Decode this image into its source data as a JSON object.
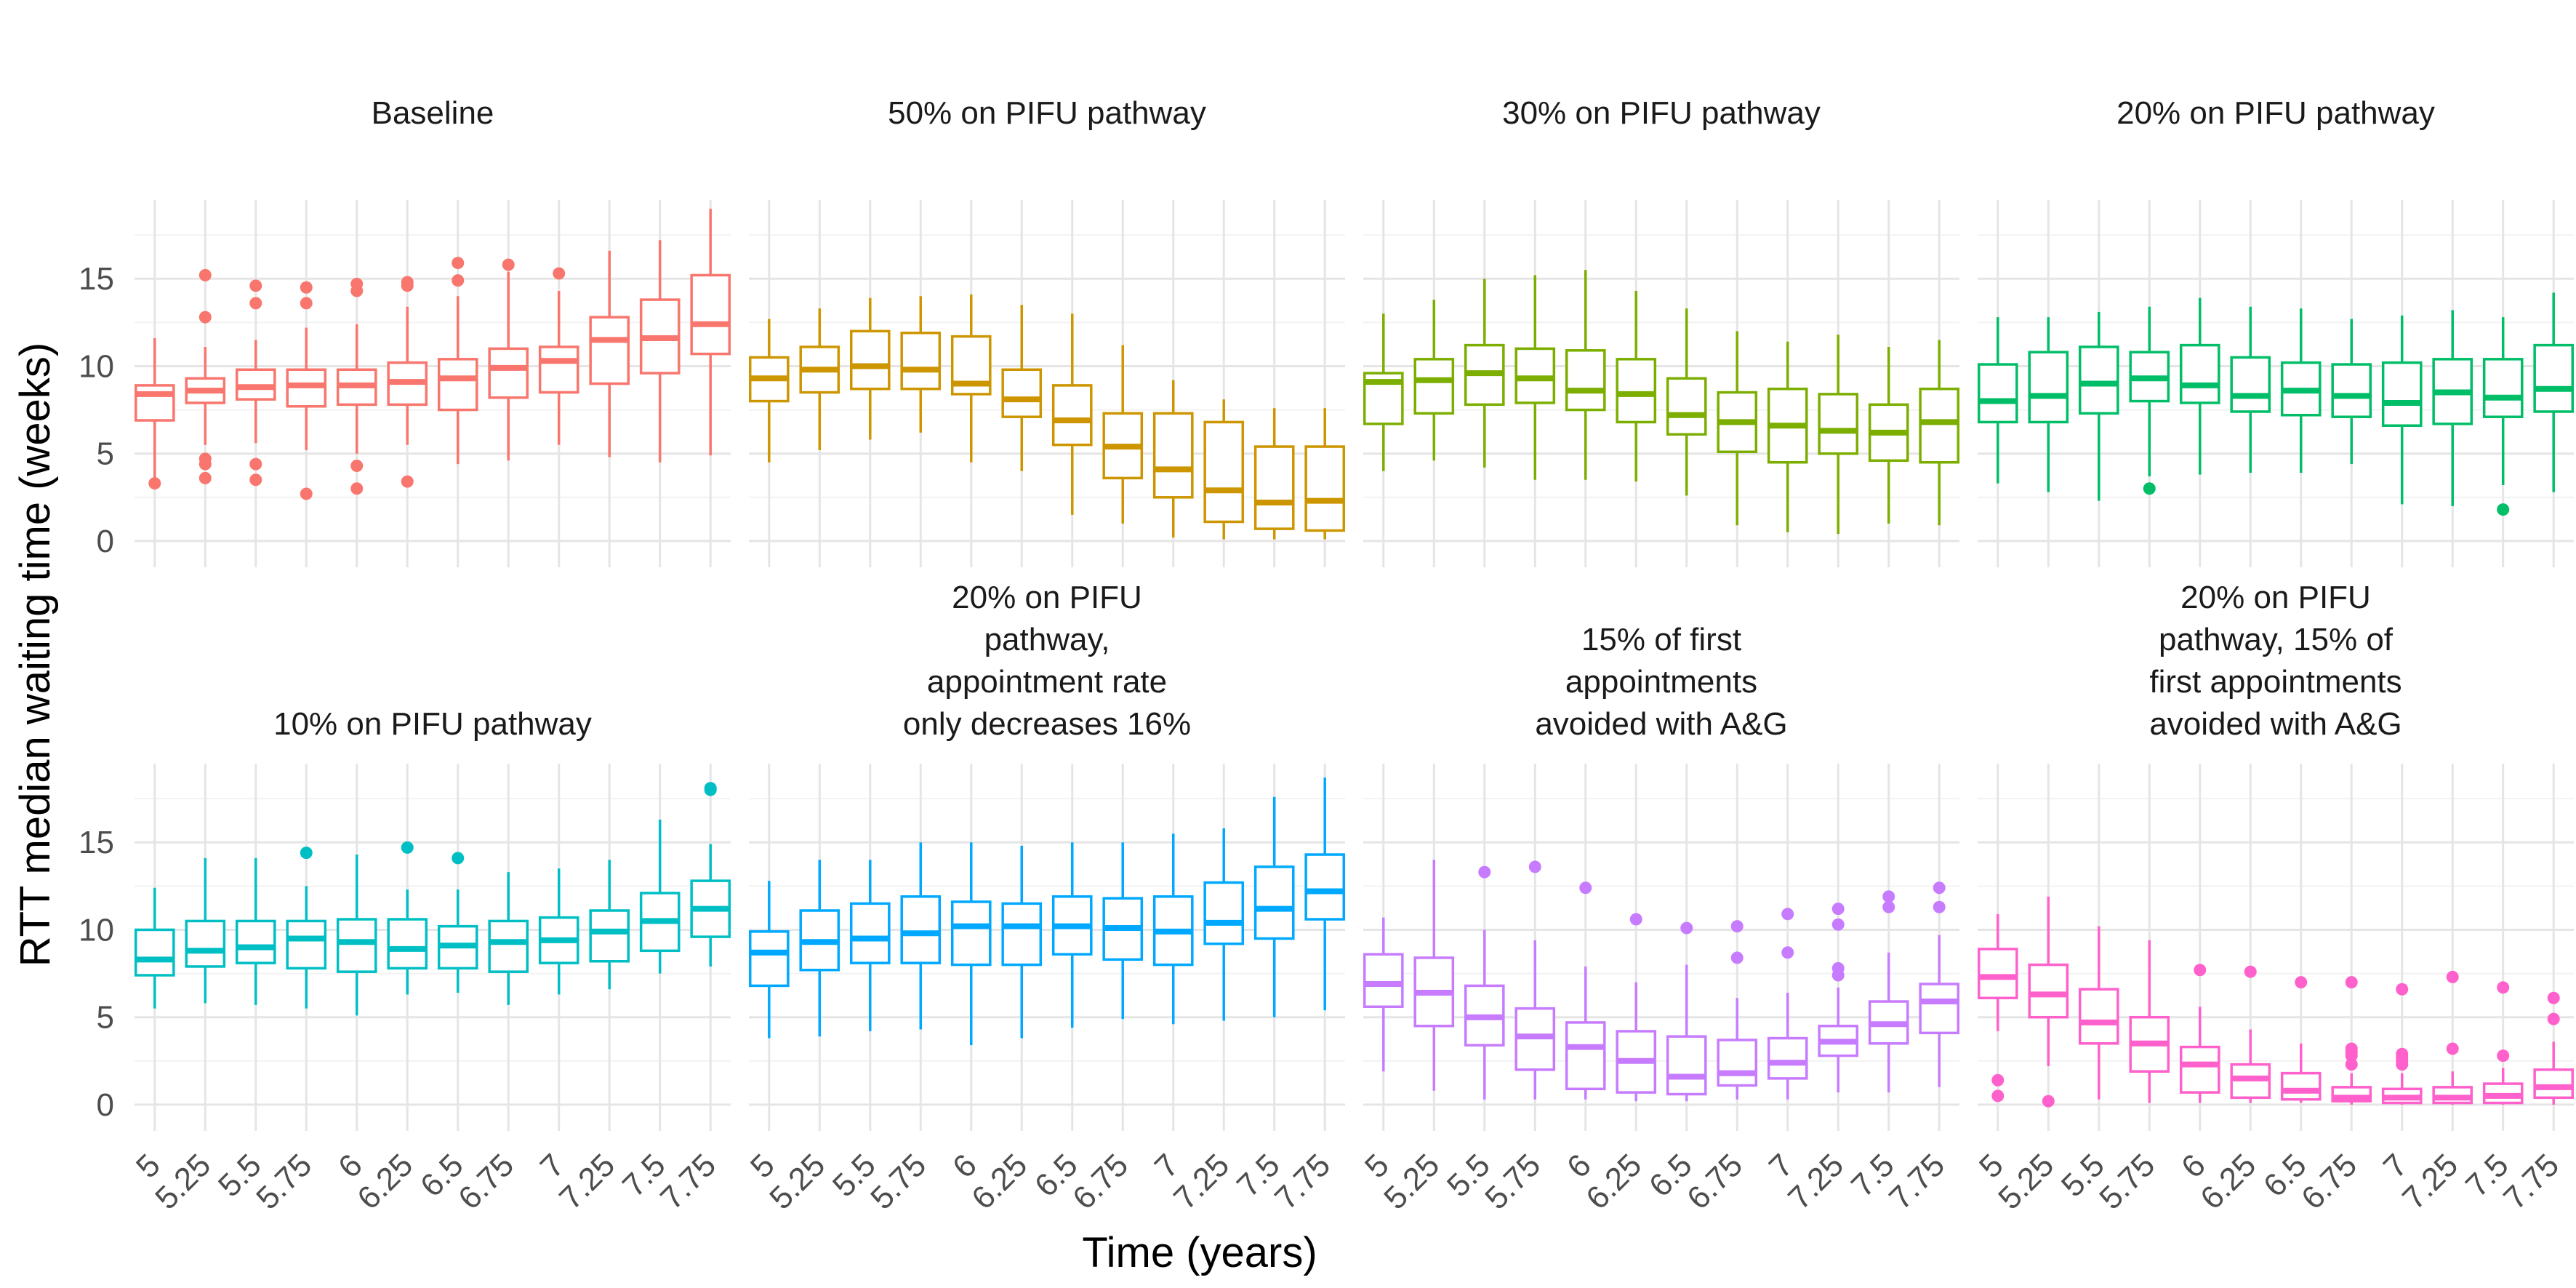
{
  "chart_data": {
    "type": "boxplot",
    "layout": "facet grid, 2 rows x 4 columns",
    "ylabel": "RTT median waiting time (weeks)",
    "xlabel": "Time (years)",
    "ylim": [
      -1.5,
      19.5
    ],
    "yticks": [
      0,
      5,
      10,
      15
    ],
    "x": [
      "5",
      "5.25",
      "5.5",
      "5.75",
      "6",
      "6.25",
      "6.5",
      "6.75",
      "7",
      "7.25",
      "7.5",
      "7.75"
    ],
    "panels": [
      {
        "title_lines": [
          "Baseline"
        ],
        "color": "#F8766D",
        "boxes": [
          {
            "lo": 3.6,
            "q1": 6.9,
            "med": 8.4,
            "q3": 8.9,
            "hi": 11.6,
            "out": [
              3.3
            ]
          },
          {
            "lo": 5.5,
            "q1": 7.9,
            "med": 8.6,
            "q3": 9.3,
            "hi": 11.1,
            "out": [
              15.2,
              12.8,
              4.7,
              4.4,
              3.6
            ]
          },
          {
            "lo": 5.6,
            "q1": 8.1,
            "med": 8.8,
            "q3": 9.8,
            "hi": 11.5,
            "out": [
              14.6,
              13.6,
              4.4,
              3.5
            ]
          },
          {
            "lo": 5.2,
            "q1": 7.7,
            "med": 8.9,
            "q3": 9.8,
            "hi": 12.2,
            "out": [
              14.5,
              13.6,
              2.7
            ]
          },
          {
            "lo": 5.0,
            "q1": 7.8,
            "med": 8.9,
            "q3": 9.8,
            "hi": 12.4,
            "out": [
              14.7,
              14.3,
              4.3,
              3.0
            ]
          },
          {
            "lo": 5.5,
            "q1": 7.8,
            "med": 9.1,
            "q3": 10.2,
            "hi": 13.4,
            "out": [
              14.8,
              14.6,
              3.4
            ]
          },
          {
            "lo": 4.4,
            "q1": 7.5,
            "med": 9.3,
            "q3": 10.4,
            "hi": 14.0,
            "out": [
              15.9,
              14.9
            ]
          },
          {
            "lo": 4.6,
            "q1": 8.2,
            "med": 9.9,
            "q3": 11.0,
            "hi": 15.4,
            "out": [
              15.8
            ]
          },
          {
            "lo": 5.5,
            "q1": 8.5,
            "med": 10.3,
            "q3": 11.1,
            "hi": 14.3,
            "out": [
              15.3
            ]
          },
          {
            "lo": 4.8,
            "q1": 9.0,
            "med": 11.5,
            "q3": 12.8,
            "hi": 16.6,
            "out": []
          },
          {
            "lo": 4.5,
            "q1": 9.6,
            "med": 11.6,
            "q3": 13.8,
            "hi": 17.2,
            "out": []
          },
          {
            "lo": 4.9,
            "q1": 10.7,
            "med": 12.4,
            "q3": 15.2,
            "hi": 19.0,
            "out": []
          }
        ]
      },
      {
        "title_lines": [
          "50% on PIFU pathway"
        ],
        "color": "#CD9600",
        "boxes": [
          {
            "lo": 4.5,
            "q1": 8.0,
            "med": 9.3,
            "q3": 10.5,
            "hi": 12.7,
            "out": []
          },
          {
            "lo": 5.2,
            "q1": 8.5,
            "med": 9.8,
            "q3": 11.1,
            "hi": 13.3,
            "out": []
          },
          {
            "lo": 5.8,
            "q1": 8.7,
            "med": 10.0,
            "q3": 12.0,
            "hi": 13.9,
            "out": []
          },
          {
            "lo": 6.2,
            "q1": 8.7,
            "med": 9.8,
            "q3": 11.9,
            "hi": 14.0,
            "out": []
          },
          {
            "lo": 4.5,
            "q1": 8.4,
            "med": 9.0,
            "q3": 11.7,
            "hi": 14.1,
            "out": []
          },
          {
            "lo": 4.0,
            "q1": 7.1,
            "med": 8.1,
            "q3": 9.8,
            "hi": 13.5,
            "out": []
          },
          {
            "lo": 1.5,
            "q1": 5.5,
            "med": 6.9,
            "q3": 8.9,
            "hi": 13.0,
            "out": []
          },
          {
            "lo": 1.0,
            "q1": 3.6,
            "med": 5.4,
            "q3": 7.3,
            "hi": 11.2,
            "out": []
          },
          {
            "lo": 0.2,
            "q1": 2.5,
            "med": 4.1,
            "q3": 7.3,
            "hi": 9.2,
            "out": []
          },
          {
            "lo": 0.1,
            "q1": 1.1,
            "med": 2.9,
            "q3": 6.8,
            "hi": 8.1,
            "out": []
          },
          {
            "lo": 0.1,
            "q1": 0.7,
            "med": 2.2,
            "q3": 5.4,
            "hi": 7.6,
            "out": []
          },
          {
            "lo": 0.1,
            "q1": 0.6,
            "med": 2.3,
            "q3": 5.4,
            "hi": 7.6,
            "out": []
          }
        ]
      },
      {
        "title_lines": [
          "30% on PIFU pathway"
        ],
        "color": "#7CAE00",
        "boxes": [
          {
            "lo": 4.0,
            "q1": 6.7,
            "med": 9.1,
            "q3": 9.6,
            "hi": 13.0,
            "out": []
          },
          {
            "lo": 4.6,
            "q1": 7.3,
            "med": 9.2,
            "q3": 10.4,
            "hi": 13.8,
            "out": []
          },
          {
            "lo": 4.2,
            "q1": 7.8,
            "med": 9.6,
            "q3": 11.2,
            "hi": 15.0,
            "out": []
          },
          {
            "lo": 3.5,
            "q1": 7.9,
            "med": 9.3,
            "q3": 11.0,
            "hi": 15.2,
            "out": []
          },
          {
            "lo": 3.5,
            "q1": 7.5,
            "med": 8.6,
            "q3": 10.9,
            "hi": 15.5,
            "out": []
          },
          {
            "lo": 3.4,
            "q1": 6.8,
            "med": 8.4,
            "q3": 10.4,
            "hi": 14.3,
            "out": []
          },
          {
            "lo": 2.6,
            "q1": 6.1,
            "med": 7.2,
            "q3": 9.3,
            "hi": 13.3,
            "out": []
          },
          {
            "lo": 0.9,
            "q1": 5.1,
            "med": 6.8,
            "q3": 8.5,
            "hi": 12.0,
            "out": []
          },
          {
            "lo": 0.5,
            "q1": 4.5,
            "med": 6.6,
            "q3": 8.7,
            "hi": 11.4,
            "out": []
          },
          {
            "lo": 0.4,
            "q1": 5.0,
            "med": 6.3,
            "q3": 8.4,
            "hi": 11.8,
            "out": []
          },
          {
            "lo": 1.0,
            "q1": 4.6,
            "med": 6.2,
            "q3": 7.8,
            "hi": 11.1,
            "out": []
          },
          {
            "lo": 0.9,
            "q1": 4.5,
            "med": 6.8,
            "q3": 8.7,
            "hi": 11.5,
            "out": []
          }
        ]
      },
      {
        "title_lines": [
          "20% on PIFU pathway"
        ],
        "color": "#00BE67",
        "boxes": [
          {
            "lo": 3.3,
            "q1": 6.8,
            "med": 8.0,
            "q3": 10.1,
            "hi": 12.8,
            "out": []
          },
          {
            "lo": 2.8,
            "q1": 6.8,
            "med": 8.3,
            "q3": 10.8,
            "hi": 12.8,
            "out": []
          },
          {
            "lo": 2.3,
            "q1": 7.3,
            "med": 9.0,
            "q3": 11.1,
            "hi": 13.1,
            "out": []
          },
          {
            "lo": 3.7,
            "q1": 8.0,
            "med": 9.3,
            "q3": 10.8,
            "hi": 13.4,
            "out": [
              3.0
            ]
          },
          {
            "lo": 3.8,
            "q1": 7.9,
            "med": 8.9,
            "q3": 11.2,
            "hi": 13.9,
            "out": []
          },
          {
            "lo": 3.9,
            "q1": 7.4,
            "med": 8.3,
            "q3": 10.5,
            "hi": 13.4,
            "out": []
          },
          {
            "lo": 3.9,
            "q1": 7.2,
            "med": 8.6,
            "q3": 10.2,
            "hi": 13.3,
            "out": []
          },
          {
            "lo": 4.4,
            "q1": 7.1,
            "med": 8.3,
            "q3": 10.1,
            "hi": 12.7,
            "out": []
          },
          {
            "lo": 2.1,
            "q1": 6.6,
            "med": 7.9,
            "q3": 10.2,
            "hi": 12.9,
            "out": []
          },
          {
            "lo": 2.0,
            "q1": 6.7,
            "med": 8.5,
            "q3": 10.4,
            "hi": 13.2,
            "out": []
          },
          {
            "lo": 3.2,
            "q1": 7.1,
            "med": 8.2,
            "q3": 10.4,
            "hi": 12.8,
            "out": [
              1.8
            ]
          },
          {
            "lo": 2.8,
            "q1": 7.4,
            "med": 8.7,
            "q3": 11.2,
            "hi": 14.2,
            "out": []
          }
        ]
      },
      {
        "title_lines": [
          "10% on PIFU pathway"
        ],
        "color": "#00BFC4",
        "boxes": [
          {
            "lo": 5.5,
            "q1": 7.4,
            "med": 8.3,
            "q3": 10.0,
            "hi": 12.4,
            "out": []
          },
          {
            "lo": 5.8,
            "q1": 7.9,
            "med": 8.8,
            "q3": 10.5,
            "hi": 14.1,
            "out": []
          },
          {
            "lo": 5.7,
            "q1": 8.1,
            "med": 9.0,
            "q3": 10.5,
            "hi": 14.1,
            "out": []
          },
          {
            "lo": 5.5,
            "q1": 7.8,
            "med": 9.5,
            "q3": 10.5,
            "hi": 12.5,
            "out": [
              14.4
            ]
          },
          {
            "lo": 5.1,
            "q1": 7.6,
            "med": 9.3,
            "q3": 10.6,
            "hi": 14.3,
            "out": []
          },
          {
            "lo": 6.3,
            "q1": 7.8,
            "med": 8.9,
            "q3": 10.6,
            "hi": 12.3,
            "out": [
              14.7
            ]
          },
          {
            "lo": 6.4,
            "q1": 7.8,
            "med": 9.1,
            "q3": 10.2,
            "hi": 12.3,
            "out": [
              14.1
            ]
          },
          {
            "lo": 5.7,
            "q1": 7.6,
            "med": 9.3,
            "q3": 10.5,
            "hi": 13.3,
            "out": []
          },
          {
            "lo": 6.3,
            "q1": 8.1,
            "med": 9.4,
            "q3": 10.7,
            "hi": 13.5,
            "out": []
          },
          {
            "lo": 6.6,
            "q1": 8.2,
            "med": 9.9,
            "q3": 11.1,
            "hi": 14.0,
            "out": []
          },
          {
            "lo": 7.5,
            "q1": 8.8,
            "med": 10.5,
            "q3": 12.1,
            "hi": 16.3,
            "out": []
          },
          {
            "lo": 7.9,
            "q1": 9.6,
            "med": 11.2,
            "q3": 12.8,
            "hi": 14.9,
            "out": [
              18.1,
              18.0
            ]
          }
        ]
      },
      {
        "title_lines": [
          "20% on PIFU",
          "pathway,",
          "appointment rate",
          "only decreases 16%"
        ],
        "color": "#00A9FF",
        "boxes": [
          {
            "lo": 3.8,
            "q1": 6.8,
            "med": 8.7,
            "q3": 9.9,
            "hi": 12.8,
            "out": []
          },
          {
            "lo": 3.9,
            "q1": 7.7,
            "med": 9.3,
            "q3": 11.1,
            "hi": 14.0,
            "out": []
          },
          {
            "lo": 4.2,
            "q1": 8.1,
            "med": 9.5,
            "q3": 11.5,
            "hi": 14.0,
            "out": []
          },
          {
            "lo": 4.3,
            "q1": 8.1,
            "med": 9.8,
            "q3": 11.9,
            "hi": 15.0,
            "out": []
          },
          {
            "lo": 3.4,
            "q1": 8.0,
            "med": 10.2,
            "q3": 11.6,
            "hi": 15.0,
            "out": []
          },
          {
            "lo": 3.8,
            "q1": 8.0,
            "med": 10.2,
            "q3": 11.5,
            "hi": 14.8,
            "out": []
          },
          {
            "lo": 4.4,
            "q1": 8.6,
            "med": 10.2,
            "q3": 11.9,
            "hi": 15.0,
            "out": []
          },
          {
            "lo": 4.9,
            "q1": 8.3,
            "med": 10.1,
            "q3": 11.8,
            "hi": 15.0,
            "out": []
          },
          {
            "lo": 4.6,
            "q1": 8.0,
            "med": 9.9,
            "q3": 11.9,
            "hi": 15.5,
            "out": []
          },
          {
            "lo": 4.8,
            "q1": 9.2,
            "med": 10.4,
            "q3": 12.7,
            "hi": 15.8,
            "out": []
          },
          {
            "lo": 5.0,
            "q1": 9.5,
            "med": 11.2,
            "q3": 13.6,
            "hi": 17.6,
            "out": []
          },
          {
            "lo": 5.4,
            "q1": 10.6,
            "med": 12.2,
            "q3": 14.3,
            "hi": 18.7,
            "out": []
          }
        ]
      },
      {
        "title_lines": [
          "15% of first",
          "appointments",
          "avoided with A&G"
        ],
        "color": "#C77CFF",
        "boxes": [
          {
            "lo": 1.9,
            "q1": 5.6,
            "med": 6.9,
            "q3": 8.6,
            "hi": 10.7,
            "out": []
          },
          {
            "lo": 0.8,
            "q1": 4.5,
            "med": 6.4,
            "q3": 8.4,
            "hi": 14.0,
            "out": []
          },
          {
            "lo": 0.3,
            "q1": 3.4,
            "med": 5.0,
            "q3": 6.8,
            "hi": 10.0,
            "out": [
              13.3
            ]
          },
          {
            "lo": 0.3,
            "q1": 2.0,
            "med": 3.9,
            "q3": 5.5,
            "hi": 9.4,
            "out": [
              13.6
            ]
          },
          {
            "lo": 0.3,
            "q1": 0.9,
            "med": 3.3,
            "q3": 4.7,
            "hi": 7.9,
            "out": [
              12.4
            ]
          },
          {
            "lo": 0.2,
            "q1": 0.7,
            "med": 2.5,
            "q3": 4.2,
            "hi": 7.0,
            "out": [
              10.6
            ]
          },
          {
            "lo": 0.2,
            "q1": 0.6,
            "med": 1.6,
            "q3": 3.9,
            "hi": 8.0,
            "out": [
              10.1
            ]
          },
          {
            "lo": 0.3,
            "q1": 1.1,
            "med": 1.8,
            "q3": 3.7,
            "hi": 6.1,
            "out": [
              10.2,
              8.4
            ]
          },
          {
            "lo": 0.3,
            "q1": 1.5,
            "med": 2.4,
            "q3": 3.8,
            "hi": 6.4,
            "out": [
              10.9,
              8.7
            ]
          },
          {
            "lo": 0.7,
            "q1": 2.8,
            "med": 3.6,
            "q3": 4.5,
            "hi": 6.7,
            "out": [
              11.2,
              10.3,
              7.8,
              7.4
            ]
          },
          {
            "lo": 0.7,
            "q1": 3.5,
            "med": 4.6,
            "q3": 5.9,
            "hi": 8.7,
            "out": [
              11.9,
              11.3
            ]
          },
          {
            "lo": 1.0,
            "q1": 4.1,
            "med": 5.9,
            "q3": 6.9,
            "hi": 9.7,
            "out": [
              12.4,
              11.3
            ]
          }
        ]
      },
      {
        "title_lines": [
          "20% on PIFU",
          "pathway, 15% of",
          "first appointments",
          "avoided with A&G"
        ],
        "color": "#FF61CC",
        "boxes": [
          {
            "lo": 4.2,
            "q1": 6.1,
            "med": 7.3,
            "q3": 8.9,
            "hi": 10.9,
            "out": [
              1.4,
              0.5
            ]
          },
          {
            "lo": 2.2,
            "q1": 5.0,
            "med": 6.3,
            "q3": 8.0,
            "hi": 11.9,
            "out": [
              0.2
            ]
          },
          {
            "lo": 0.3,
            "q1": 3.5,
            "med": 4.7,
            "q3": 6.6,
            "hi": 10.2,
            "out": []
          },
          {
            "lo": 0.1,
            "q1": 1.9,
            "med": 3.5,
            "q3": 5.0,
            "hi": 9.4,
            "out": []
          },
          {
            "lo": 0.1,
            "q1": 0.7,
            "med": 2.3,
            "q3": 3.3,
            "hi": 5.6,
            "out": [
              7.7
            ]
          },
          {
            "lo": 0.1,
            "q1": 0.4,
            "med": 1.5,
            "q3": 2.3,
            "hi": 4.3,
            "out": [
              7.6
            ]
          },
          {
            "lo": 0.1,
            "q1": 0.3,
            "med": 0.8,
            "q3": 1.8,
            "hi": 3.5,
            "out": [
              7.0
            ]
          },
          {
            "lo": 0.0,
            "q1": 0.2,
            "med": 0.4,
            "q3": 1.0,
            "hi": 1.8,
            "out": [
              7.0,
              3.2,
              3.0,
              2.8,
              2.3
            ]
          },
          {
            "lo": 0.0,
            "q1": 0.1,
            "med": 0.4,
            "q3": 0.9,
            "hi": 1.8,
            "out": [
              6.6,
              2.9,
              2.7,
              2.5,
              2.3
            ]
          },
          {
            "lo": 0.0,
            "q1": 0.1,
            "med": 0.4,
            "q3": 1.0,
            "hi": 1.9,
            "out": [
              7.3,
              3.2
            ]
          },
          {
            "lo": 0.0,
            "q1": 0.1,
            "med": 0.5,
            "q3": 1.2,
            "hi": 2.1,
            "out": [
              6.7,
              2.8
            ]
          },
          {
            "lo": 0.0,
            "q1": 0.4,
            "med": 1.0,
            "q3": 2.0,
            "hi": 3.6,
            "out": [
              6.1,
              4.9
            ]
          }
        ]
      }
    ]
  }
}
